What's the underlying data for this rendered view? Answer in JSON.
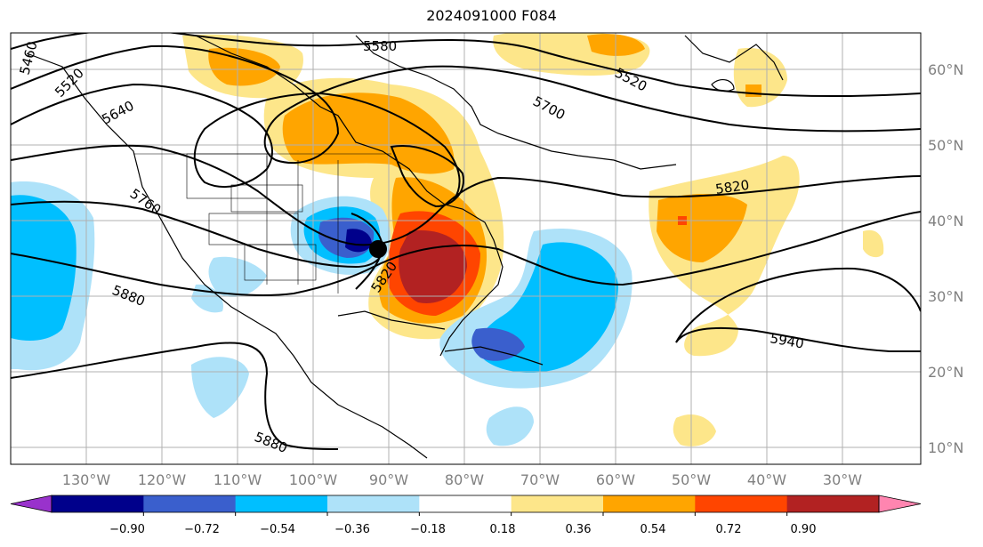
{
  "title": "2024091000 F084",
  "longitude_labels": [
    "130°W",
    "120°W",
    "110°W",
    "100°W",
    "90°W",
    "80°W",
    "70°W",
    "60°W",
    "50°W",
    "40°W",
    "30°W"
  ],
  "latitude_labels": [
    "60°N",
    "50°N",
    "40°N",
    "30°N",
    "20°N",
    "10°N"
  ],
  "contour_labels": [
    "5580",
    "5520",
    "5640",
    "5700",
    "5520",
    "5760",
    "5820",
    "5820",
    "5880",
    "5880",
    "5940",
    "5460"
  ],
  "colorbar": {
    "ticks": [
      "−0.90",
      "−0.72",
      "−0.54",
      "−0.36",
      "−0.18",
      "0.18",
      "0.36",
      "0.54",
      "0.72",
      "0.90"
    ],
    "colors": [
      "#9932cc",
      "#00008b",
      "#3a5fcd",
      "#00bfff",
      "#aee2f9",
      "#ffffff",
      "#fde68a",
      "#ffa500",
      "#ff4500",
      "#b22222",
      "#ff85b0"
    ]
  }
}
